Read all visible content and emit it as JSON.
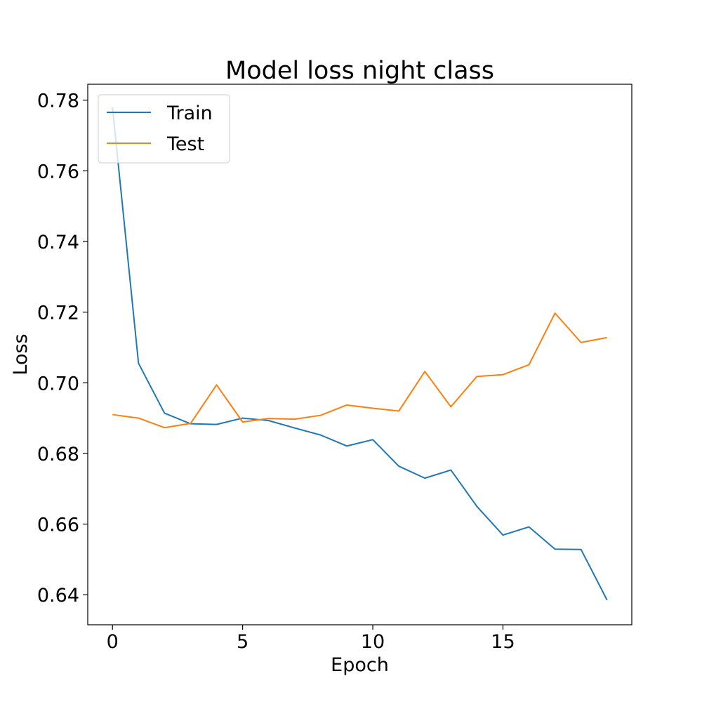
{
  "chart_data": {
    "type": "line",
    "title": "Model loss night class",
    "xlabel": "Epoch",
    "ylabel": "Loss",
    "xlim": [
      -0.95,
      19.95
    ],
    "ylim": [
      0.6315,
      0.7845
    ],
    "xticks": [
      0,
      5,
      10,
      15
    ],
    "yticks": [
      0.64,
      0.66,
      0.68,
      0.7,
      0.72,
      0.74,
      0.76,
      0.78
    ],
    "x": [
      0,
      1,
      2,
      3,
      4,
      5,
      6,
      7,
      8,
      9,
      10,
      11,
      12,
      13,
      14,
      15,
      16,
      17,
      18,
      19
    ],
    "series": [
      {
        "name": "Train",
        "color": "#1f77b4",
        "values": [
          0.778,
          0.7055,
          0.6914,
          0.6884,
          0.6882,
          0.69,
          0.6893,
          0.6872,
          0.6852,
          0.6821,
          0.6839,
          0.6764,
          0.673,
          0.6753,
          0.665,
          0.6569,
          0.6592,
          0.6529,
          0.6528,
          0.6385
        ]
      },
      {
        "name": "Test",
        "color": "#ff7f0e",
        "values": [
          0.691,
          0.69,
          0.6873,
          0.6885,
          0.6994,
          0.6889,
          0.6899,
          0.6897,
          0.6908,
          0.6937,
          0.6928,
          0.692,
          0.7032,
          0.6932,
          0.7018,
          0.7023,
          0.7051,
          0.7197,
          0.7114,
          0.7128
        ]
      }
    ],
    "legend": "upper left",
    "grid": false
  }
}
